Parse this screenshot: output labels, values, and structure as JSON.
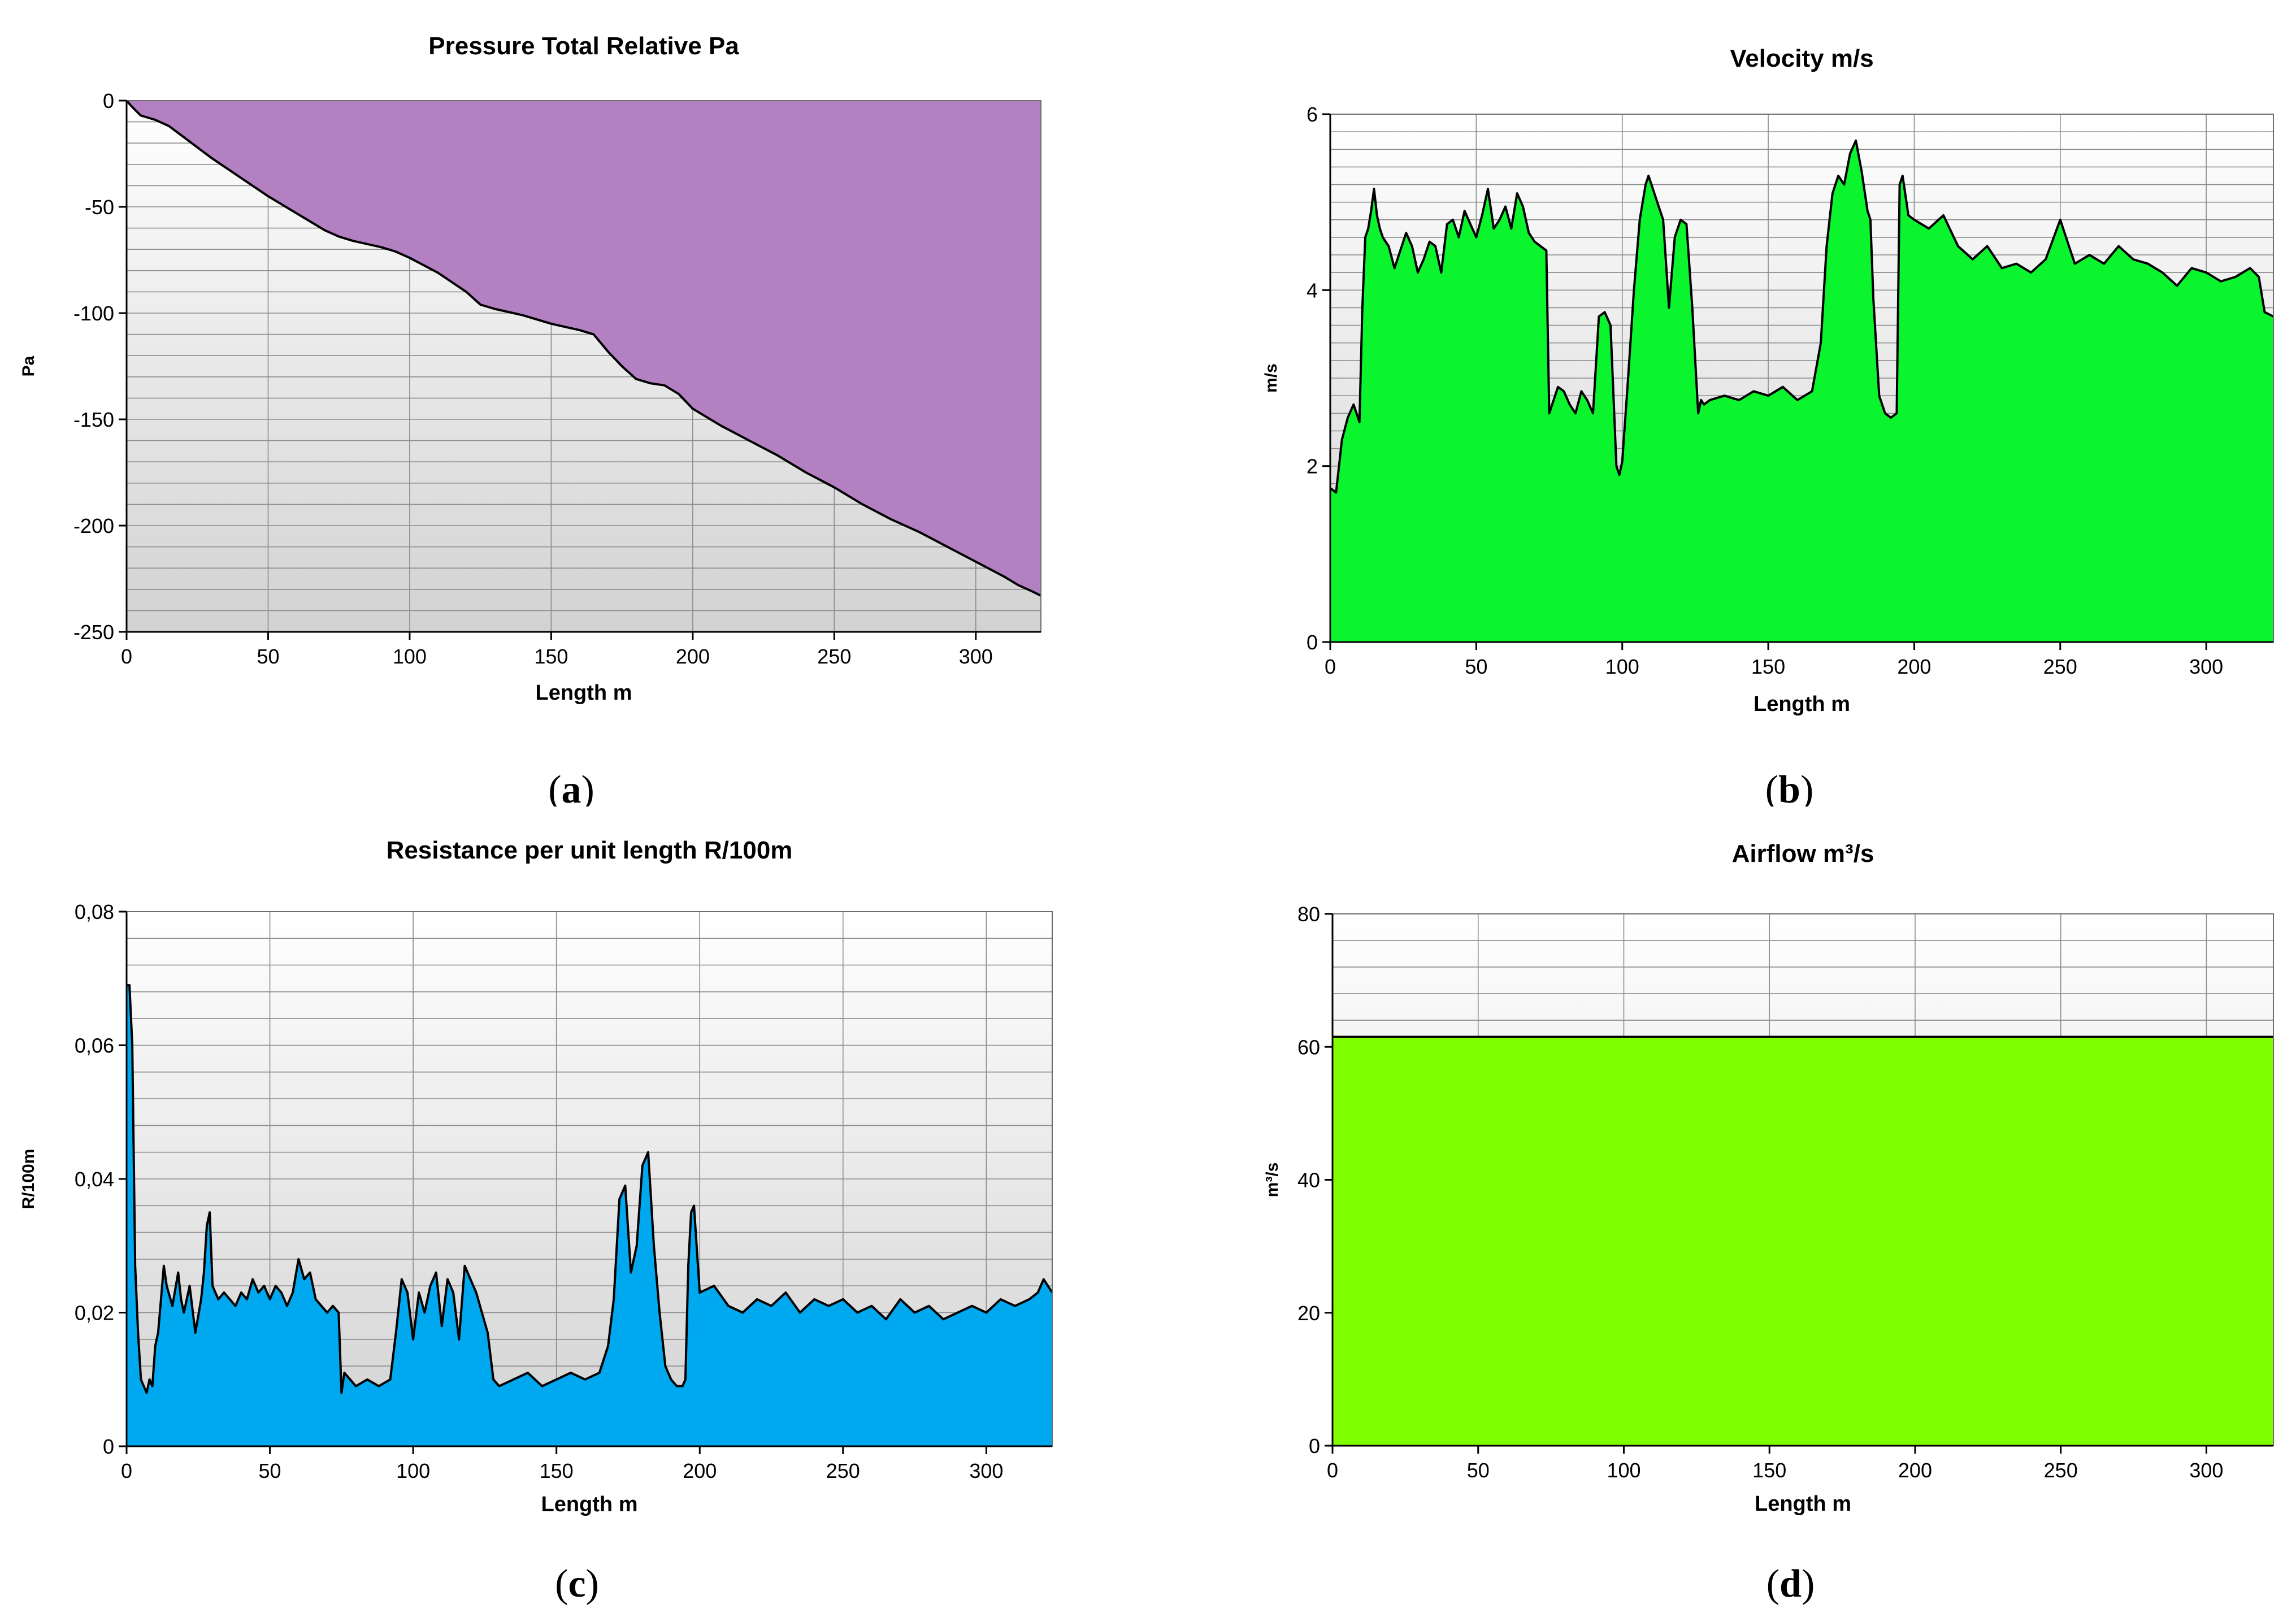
{
  "chart_data": [
    {
      "id": "a",
      "type": "area",
      "title": "Pressure Total Relative Pa",
      "xlabel": "Length m",
      "ylabel": "Pa",
      "caption": "a",
      "xlim": [
        0,
        323
      ],
      "ylim": [
        -250,
        0
      ],
      "xticks": [
        0,
        50,
        100,
        150,
        200,
        250,
        300
      ],
      "yticks": [
        0,
        -50,
        -100,
        -150,
        -200,
        -250
      ],
      "ytick_labels": [
        "0",
        "-50",
        "-100",
        "-150",
        "-200",
        "-250"
      ],
      "y_minor_step": 10,
      "fill_color": "#b381c2",
      "fill_side": "above",
      "series": [
        {
          "x": [
            0,
            2,
            5,
            10,
            15,
            20,
            25,
            30,
            40,
            50,
            60,
            70,
            75,
            80,
            90,
            95,
            100,
            110,
            120,
            125,
            130,
            140,
            150,
            160,
            165,
            170,
            175,
            180,
            185,
            190,
            195,
            200,
            210,
            220,
            230,
            240,
            250,
            260,
            270,
            280,
            290,
            300,
            310,
            315,
            320,
            323
          ],
          "y": [
            0,
            -3,
            -7,
            -9,
            -12,
            -17,
            -22,
            -27,
            -36,
            -45,
            -53,
            -61,
            -64,
            -66,
            -69,
            -71,
            -74,
            -81,
            -90,
            -96,
            -98,
            -101,
            -105,
            -108,
            -110,
            -118,
            -125,
            -131,
            -133,
            -134,
            -138,
            -145,
            -153,
            -160,
            -167,
            -175,
            -182,
            -190,
            -197,
            -203,
            -210,
            -217,
            -224,
            -228,
            -231,
            -233
          ]
        }
      ]
    },
    {
      "id": "b",
      "type": "area",
      "title": "Velocity m/s",
      "xlabel": "Length m",
      "ylabel": "m/s",
      "caption": "b",
      "xlim": [
        0,
        323
      ],
      "ylim": [
        0,
        6
      ],
      "xticks": [
        0,
        50,
        100,
        150,
        200,
        250,
        300
      ],
      "yticks": [
        0,
        2,
        4,
        6
      ],
      "ytick_labels": [
        "0",
        "2",
        "4",
        "6"
      ],
      "y_minor_step": 0.2,
      "fill_color": "#0af52d",
      "fill_side": "below",
      "series": [
        {
          "x": [
            0,
            2,
            3,
            4,
            6,
            8,
            10,
            11,
            12,
            13,
            14,
            15,
            16,
            17,
            18,
            20,
            22,
            24,
            26,
            28,
            30,
            32,
            34,
            36,
            38,
            40,
            42,
            44,
            46,
            48,
            50,
            52,
            54,
            56,
            58,
            60,
            62,
            64,
            66,
            68,
            70,
            72,
            74,
            75,
            76,
            78,
            80,
            82,
            84,
            86,
            88,
            90,
            92,
            94,
            96,
            98,
            99,
            100,
            102,
            104,
            106,
            108,
            109,
            110,
            112,
            114,
            116,
            118,
            120,
            122,
            124,
            126,
            127,
            128,
            130,
            135,
            140,
            145,
            150,
            155,
            160,
            165,
            168,
            170,
            172,
            174,
            176,
            178,
            180,
            182,
            184,
            185,
            186,
            188,
            190,
            192,
            194,
            195,
            196,
            198,
            200,
            205,
            210,
            215,
            220,
            225,
            230,
            235,
            240,
            245,
            250,
            255,
            260,
            265,
            270,
            275,
            280,
            285,
            290,
            295,
            300,
            305,
            310,
            315,
            318,
            320,
            323
          ],
          "y": [
            1.75,
            1.7,
            2.0,
            2.3,
            2.55,
            2.7,
            2.5,
            3.8,
            4.6,
            4.7,
            4.9,
            5.15,
            4.85,
            4.7,
            4.6,
            4.5,
            4.25,
            4.45,
            4.65,
            4.5,
            4.2,
            4.35,
            4.55,
            4.5,
            4.2,
            4.75,
            4.8,
            4.6,
            4.9,
            4.75,
            4.6,
            4.85,
            5.15,
            4.7,
            4.8,
            4.95,
            4.7,
            5.1,
            4.95,
            4.65,
            4.55,
            4.5,
            4.45,
            2.6,
            2.7,
            2.9,
            2.85,
            2.7,
            2.6,
            2.85,
            2.75,
            2.6,
            3.7,
            3.75,
            3.6,
            2.0,
            1.9,
            2.05,
            3.0,
            4.0,
            4.8,
            5.2,
            5.3,
            5.2,
            5.0,
            4.8,
            3.8,
            4.6,
            4.8,
            4.75,
            3.8,
            2.6,
            2.75,
            2.7,
            2.75,
            2.8,
            2.75,
            2.85,
            2.8,
            2.9,
            2.75,
            2.85,
            3.4,
            4.5,
            5.1,
            5.3,
            5.2,
            5.55,
            5.7,
            5.35,
            4.9,
            4.8,
            3.9,
            2.8,
            2.6,
            2.55,
            2.6,
            5.2,
            5.3,
            4.85,
            4.8,
            4.7,
            4.85,
            4.5,
            4.35,
            4.5,
            4.25,
            4.3,
            4.2,
            4.35,
            4.8,
            4.3,
            4.4,
            4.3,
            4.5,
            4.35,
            4.3,
            4.2,
            4.05,
            4.25,
            4.2,
            4.1,
            4.15,
            4.25,
            4.15,
            3.75,
            3.7
          ]
        }
      ]
    },
    {
      "id": "c",
      "type": "area",
      "title": "Resistance per unit length R/100m",
      "xlabel": "Length m",
      "ylabel": "R/100m",
      "caption": "c",
      "xlim": [
        0,
        323
      ],
      "ylim": [
        0,
        0.08
      ],
      "xticks": [
        0,
        50,
        100,
        150,
        200,
        250,
        300
      ],
      "yticks": [
        0,
        0.02,
        0.04,
        0.06,
        0.08
      ],
      "ytick_labels": [
        "0",
        "0,02",
        "0,04",
        "0,06",
        "0,08"
      ],
      "y_minor_step": 0.004,
      "fill_color": "#00a8f0",
      "fill_side": "below",
      "series": [
        {
          "x": [
            0,
            1,
            2,
            3,
            4,
            5,
            6,
            7,
            8,
            9,
            10,
            11,
            12,
            13,
            14,
            16,
            18,
            19,
            20,
            22,
            24,
            26,
            27,
            28,
            29,
            30,
            32,
            34,
            36,
            38,
            40,
            42,
            44,
            46,
            48,
            50,
            52,
            54,
            56,
            58,
            60,
            62,
            64,
            66,
            68,
            70,
            72,
            74,
            75,
            76,
            78,
            80,
            84,
            88,
            92,
            94,
            96,
            98,
            100,
            102,
            104,
            106,
            108,
            110,
            112,
            114,
            116,
            118,
            120,
            122,
            124,
            126,
            128,
            130,
            135,
            140,
            145,
            150,
            155,
            160,
            165,
            168,
            170,
            172,
            174,
            176,
            178,
            180,
            182,
            184,
            186,
            188,
            190,
            192,
            194,
            195,
            196,
            197,
            198,
            200,
            205,
            210,
            215,
            220,
            225,
            230,
            235,
            240,
            245,
            250,
            255,
            260,
            265,
            270,
            275,
            280,
            285,
            290,
            295,
            300,
            305,
            310,
            315,
            318,
            320,
            323
          ],
          "y": [
            0.069,
            0.069,
            0.06,
            0.027,
            0.017,
            0.01,
            0.009,
            0.008,
            0.01,
            0.009,
            0.015,
            0.017,
            0.022,
            0.027,
            0.024,
            0.021,
            0.026,
            0.022,
            0.02,
            0.024,
            0.017,
            0.022,
            0.026,
            0.033,
            0.035,
            0.024,
            0.022,
            0.023,
            0.022,
            0.021,
            0.023,
            0.022,
            0.025,
            0.023,
            0.024,
            0.022,
            0.024,
            0.023,
            0.021,
            0.023,
            0.028,
            0.025,
            0.026,
            0.022,
            0.021,
            0.02,
            0.021,
            0.02,
            0.008,
            0.011,
            0.01,
            0.009,
            0.01,
            0.009,
            0.01,
            0.017,
            0.025,
            0.023,
            0.016,
            0.023,
            0.02,
            0.024,
            0.026,
            0.018,
            0.025,
            0.023,
            0.016,
            0.027,
            0.025,
            0.023,
            0.02,
            0.017,
            0.01,
            0.009,
            0.01,
            0.011,
            0.009,
            0.01,
            0.011,
            0.01,
            0.011,
            0.015,
            0.022,
            0.037,
            0.039,
            0.026,
            0.03,
            0.042,
            0.044,
            0.03,
            0.02,
            0.012,
            0.01,
            0.009,
            0.009,
            0.01,
            0.027,
            0.035,
            0.036,
            0.023,
            0.024,
            0.021,
            0.02,
            0.022,
            0.021,
            0.023,
            0.02,
            0.022,
            0.021,
            0.022,
            0.02,
            0.021,
            0.019,
            0.022,
            0.02,
            0.021,
            0.019,
            0.02,
            0.021,
            0.02,
            0.022,
            0.021,
            0.022,
            0.023,
            0.025,
            0.023
          ]
        }
      ]
    },
    {
      "id": "d",
      "type": "area",
      "title": "Airflow m³/s",
      "xlabel": "Length m",
      "ylabel": "m³/s",
      "caption": "d",
      "xlim": [
        0,
        323
      ],
      "ylim": [
        0,
        80
      ],
      "xticks": [
        0,
        50,
        100,
        150,
        200,
        250,
        300
      ],
      "yticks": [
        0,
        20,
        40,
        60,
        80
      ],
      "ytick_labels": [
        "0",
        "20",
        "40",
        "60",
        "80"
      ],
      "y_minor_step": 4,
      "fill_color": "#80ff00",
      "fill_side": "below",
      "series": [
        {
          "x": [
            0,
            323
          ],
          "y": [
            61.5,
            61.5
          ]
        }
      ]
    }
  ]
}
